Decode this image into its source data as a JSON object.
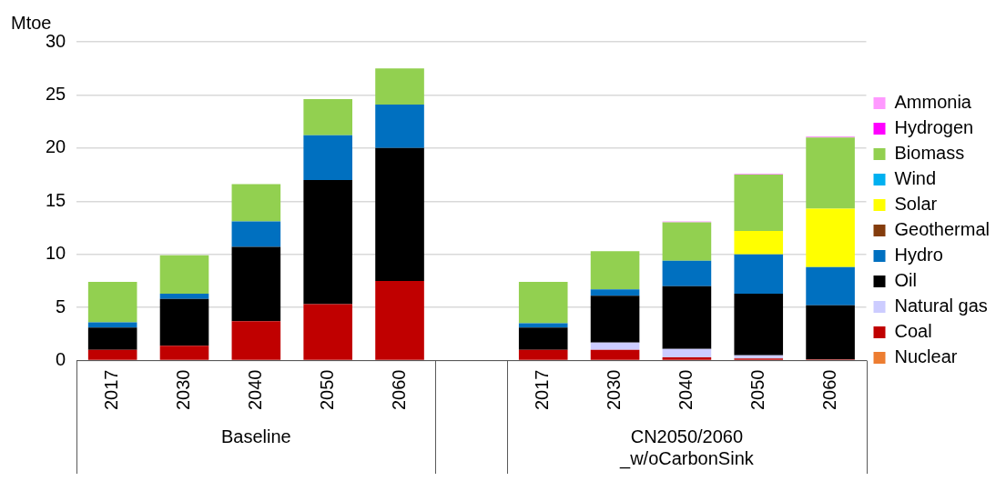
{
  "chart_data": {
    "type": "bar",
    "stacked": true,
    "ylabel": "Mtoe",
    "categories": [
      "2017",
      "2030",
      "2040",
      "2050",
      "2060",
      null,
      "2017",
      "2030",
      "2040",
      "2050",
      "2060"
    ],
    "annotations": [
      "Baseline",
      "CN2050/2060\n_w/oCarbonSink"
    ],
    "ylim": [
      0,
      30
    ],
    "yticks": [
      0,
      5,
      10,
      15,
      20,
      25,
      30
    ],
    "grid": "y",
    "legend": "right",
    "series": [
      {
        "name": "Nuclear",
        "color": "#ed7d31",
        "values": [
          0,
          0,
          0,
          0,
          0,
          null,
          0,
          0,
          0,
          0,
          0
        ]
      },
      {
        "name": "Coal",
        "color": "#c00000",
        "values": [
          1.0,
          1.4,
          3.7,
          5.3,
          7.5,
          null,
          1.0,
          1.0,
          0.3,
          0.2,
          0.1
        ]
      },
      {
        "name": "Natural gas",
        "color": "#ccccff",
        "values": [
          0,
          0,
          0,
          0,
          0,
          null,
          0,
          0.7,
          0.8,
          0.3,
          0
        ]
      },
      {
        "name": "Oil",
        "color": "#000000",
        "values": [
          2.1,
          4.4,
          7.0,
          11.7,
          12.5,
          null,
          2.1,
          4.4,
          5.9,
          5.8,
          5.1
        ]
      },
      {
        "name": "Hydro",
        "color": "#0070c0",
        "values": [
          0.5,
          0.5,
          2.4,
          4.2,
          4.1,
          null,
          0.4,
          0.6,
          2.4,
          3.7,
          3.6
        ]
      },
      {
        "name": "Geothermal",
        "color": "#843c0c",
        "values": [
          0,
          0,
          0,
          0,
          0,
          null,
          0,
          0,
          0,
          0,
          0
        ]
      },
      {
        "name": "Solar",
        "color": "#ffff00",
        "values": [
          0,
          0,
          0,
          0,
          0,
          null,
          0,
          0,
          0,
          2.2,
          5.5
        ]
      },
      {
        "name": "Wind",
        "color": "#00b0f0",
        "values": [
          0,
          0,
          0,
          0,
          0,
          null,
          0,
          0,
          0,
          0,
          0
        ]
      },
      {
        "name": "Biomass",
        "color": "#92d050",
        "values": [
          3.8,
          3.6,
          3.5,
          3.4,
          3.4,
          null,
          3.9,
          3.6,
          3.6,
          5.3,
          6.7
        ]
      },
      {
        "name": "Hydrogen",
        "color": "#ff00ff",
        "values": [
          0,
          0,
          0,
          0,
          0,
          null,
          0,
          0,
          0,
          0,
          0
        ]
      },
      {
        "name": "Ammonia",
        "color": "#ff99ff",
        "values": [
          0,
          0,
          0,
          0,
          0,
          null,
          0,
          0,
          0.1,
          0.1,
          0.1
        ]
      }
    ]
  }
}
